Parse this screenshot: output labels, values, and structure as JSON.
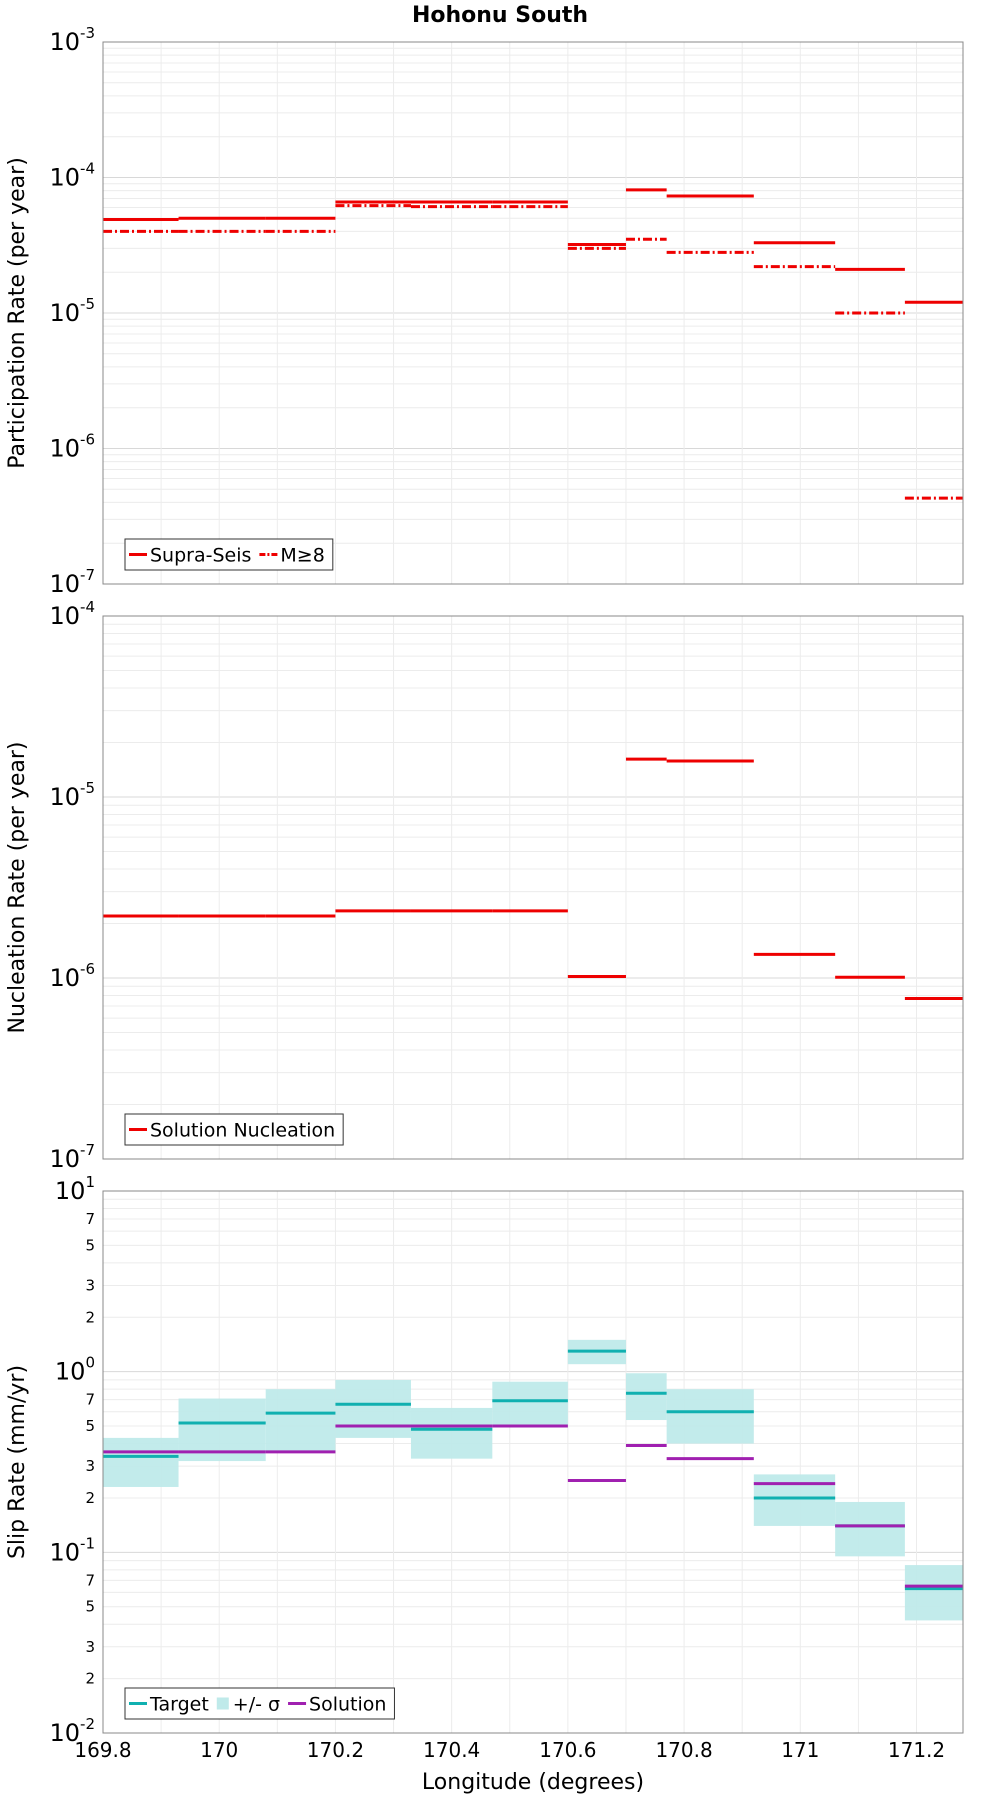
{
  "figure": {
    "title": "Hohonu South"
  },
  "chart_data": [
    {
      "type": "line",
      "scale": "log",
      "ylabel": "Participation Rate (per year)",
      "xlabel": "",
      "xlim": [
        169.8,
        171.28
      ],
      "ylim": [
        1e-07,
        0.001
      ],
      "grid": true,
      "legend_position": "bottom-left",
      "legend": [
        "Supra-Seis",
        "M≥8"
      ],
      "series": [
        {
          "name": "Supra-Seis",
          "color": "#ee0000",
          "style": "solid",
          "segments": [
            [
              169.8,
              169.93,
              4.9e-05
            ],
            [
              169.93,
              170.08,
              5e-05
            ],
            [
              170.08,
              170.2,
              5e-05
            ],
            [
              170.2,
              170.33,
              6.6e-05
            ],
            [
              170.33,
              170.47,
              6.6e-05
            ],
            [
              170.47,
              170.6,
              6.6e-05
            ],
            [
              170.6,
              170.7,
              3.2e-05
            ],
            [
              170.7,
              170.77,
              8.1e-05
            ],
            [
              170.77,
              170.92,
              7.3e-05
            ],
            [
              170.92,
              171.06,
              3.3e-05
            ],
            [
              171.06,
              171.18,
              2.1e-05
            ],
            [
              171.18,
              171.28,
              1.2e-05
            ]
          ]
        },
        {
          "name": "M≥8",
          "color": "#ee0000",
          "style": "dashdot",
          "segments": [
            [
              169.8,
              169.93,
              4e-05
            ],
            [
              169.93,
              170.08,
              4e-05
            ],
            [
              170.08,
              170.2,
              4e-05
            ],
            [
              170.2,
              170.33,
              6.2e-05
            ],
            [
              170.33,
              170.47,
              6.1e-05
            ],
            [
              170.47,
              170.6,
              6.1e-05
            ],
            [
              170.6,
              170.7,
              3e-05
            ],
            [
              170.7,
              170.77,
              3.5e-05
            ],
            [
              170.77,
              170.92,
              2.8e-05
            ],
            [
              170.92,
              171.06,
              2.2e-05
            ],
            [
              171.06,
              171.18,
              1e-05
            ],
            [
              171.18,
              171.28,
              4.3e-07
            ]
          ]
        }
      ]
    },
    {
      "type": "line",
      "scale": "log",
      "ylabel": "Nucleation Rate (per year)",
      "xlabel": "",
      "xlim": [
        169.8,
        171.28
      ],
      "ylim": [
        1e-07,
        0.0001
      ],
      "grid": true,
      "legend_position": "bottom-left",
      "legend": [
        "Solution Nucleation"
      ],
      "series": [
        {
          "name": "Solution Nucleation",
          "color": "#ee0000",
          "style": "solid",
          "segments": [
            [
              169.8,
              169.93,
              2.2e-06
            ],
            [
              169.93,
              170.08,
              2.2e-06
            ],
            [
              170.08,
              170.2,
              2.2e-06
            ],
            [
              170.2,
              170.33,
              2.35e-06
            ],
            [
              170.33,
              170.47,
              2.35e-06
            ],
            [
              170.47,
              170.6,
              2.35e-06
            ],
            [
              170.6,
              170.7,
              1.02e-06
            ],
            [
              170.7,
              170.77,
              1.62e-05
            ],
            [
              170.77,
              170.92,
              1.58e-05
            ],
            [
              170.92,
              171.06,
              1.35e-06
            ],
            [
              171.06,
              171.18,
              1.01e-06
            ],
            [
              171.18,
              171.28,
              7.7e-07
            ]
          ]
        }
      ]
    },
    {
      "type": "line",
      "scale": "log",
      "ylabel": "Slip Rate (mm/yr)",
      "xlabel": "Longitude (degrees)",
      "xlim": [
        169.8,
        171.28
      ],
      "ylim": [
        0.01,
        10
      ],
      "xticks": [
        "169.8",
        "170",
        "170.2",
        "170.4",
        "170.6",
        "170.8",
        "171",
        "171.2"
      ],
      "minor_ytick_labels": [
        "2",
        "3",
        "5",
        "7"
      ],
      "grid": true,
      "legend_position": "bottom-left",
      "legend": [
        "Target",
        "+/- σ",
        "Solution"
      ],
      "series": [
        {
          "name": "+/- σ",
          "color": "#bfeaea",
          "style": "band",
          "segments": [
            [
              169.8,
              169.93,
              0.23,
              0.43
            ],
            [
              169.93,
              170.08,
              0.32,
              0.71
            ],
            [
              170.08,
              170.2,
              0.36,
              0.8
            ],
            [
              170.2,
              170.33,
              0.43,
              0.9
            ],
            [
              170.33,
              170.47,
              0.33,
              0.63
            ],
            [
              170.47,
              170.6,
              0.5,
              0.88
            ],
            [
              170.6,
              170.7,
              1.1,
              1.5
            ],
            [
              170.7,
              170.77,
              0.54,
              0.98
            ],
            [
              170.77,
              170.92,
              0.4,
              0.8
            ],
            [
              170.92,
              171.06,
              0.14,
              0.27
            ],
            [
              171.06,
              171.18,
              0.095,
              0.19
            ],
            [
              171.18,
              171.28,
              0.042,
              0.085
            ]
          ]
        },
        {
          "name": "Target",
          "color": "#10b0b0",
          "style": "solid",
          "segments": [
            [
              169.8,
              169.93,
              0.34
            ],
            [
              169.93,
              170.08,
              0.52
            ],
            [
              170.08,
              170.2,
              0.59
            ],
            [
              170.2,
              170.33,
              0.66
            ],
            [
              170.33,
              170.47,
              0.48
            ],
            [
              170.47,
              170.6,
              0.69
            ],
            [
              170.6,
              170.7,
              1.3
            ],
            [
              170.7,
              170.77,
              0.76
            ],
            [
              170.77,
              170.92,
              0.6
            ],
            [
              170.92,
              171.06,
              0.2
            ],
            [
              171.06,
              171.18,
              0.14
            ],
            [
              171.18,
              171.28,
              0.063
            ]
          ]
        },
        {
          "name": "Solution",
          "color": "#a020b0",
          "style": "solid",
          "segments": [
            [
              169.8,
              169.93,
              0.36
            ],
            [
              169.93,
              170.08,
              0.36
            ],
            [
              170.08,
              170.2,
              0.36
            ],
            [
              170.2,
              170.33,
              0.5
            ],
            [
              170.33,
              170.47,
              0.5
            ],
            [
              170.47,
              170.6,
              0.5
            ],
            [
              170.6,
              170.7,
              0.25
            ],
            [
              170.7,
              170.77,
              0.39
            ],
            [
              170.77,
              170.92,
              0.33
            ],
            [
              170.92,
              171.06,
              0.24
            ],
            [
              171.06,
              171.18,
              0.14
            ],
            [
              171.18,
              171.28,
              0.065
            ]
          ]
        }
      ]
    }
  ]
}
